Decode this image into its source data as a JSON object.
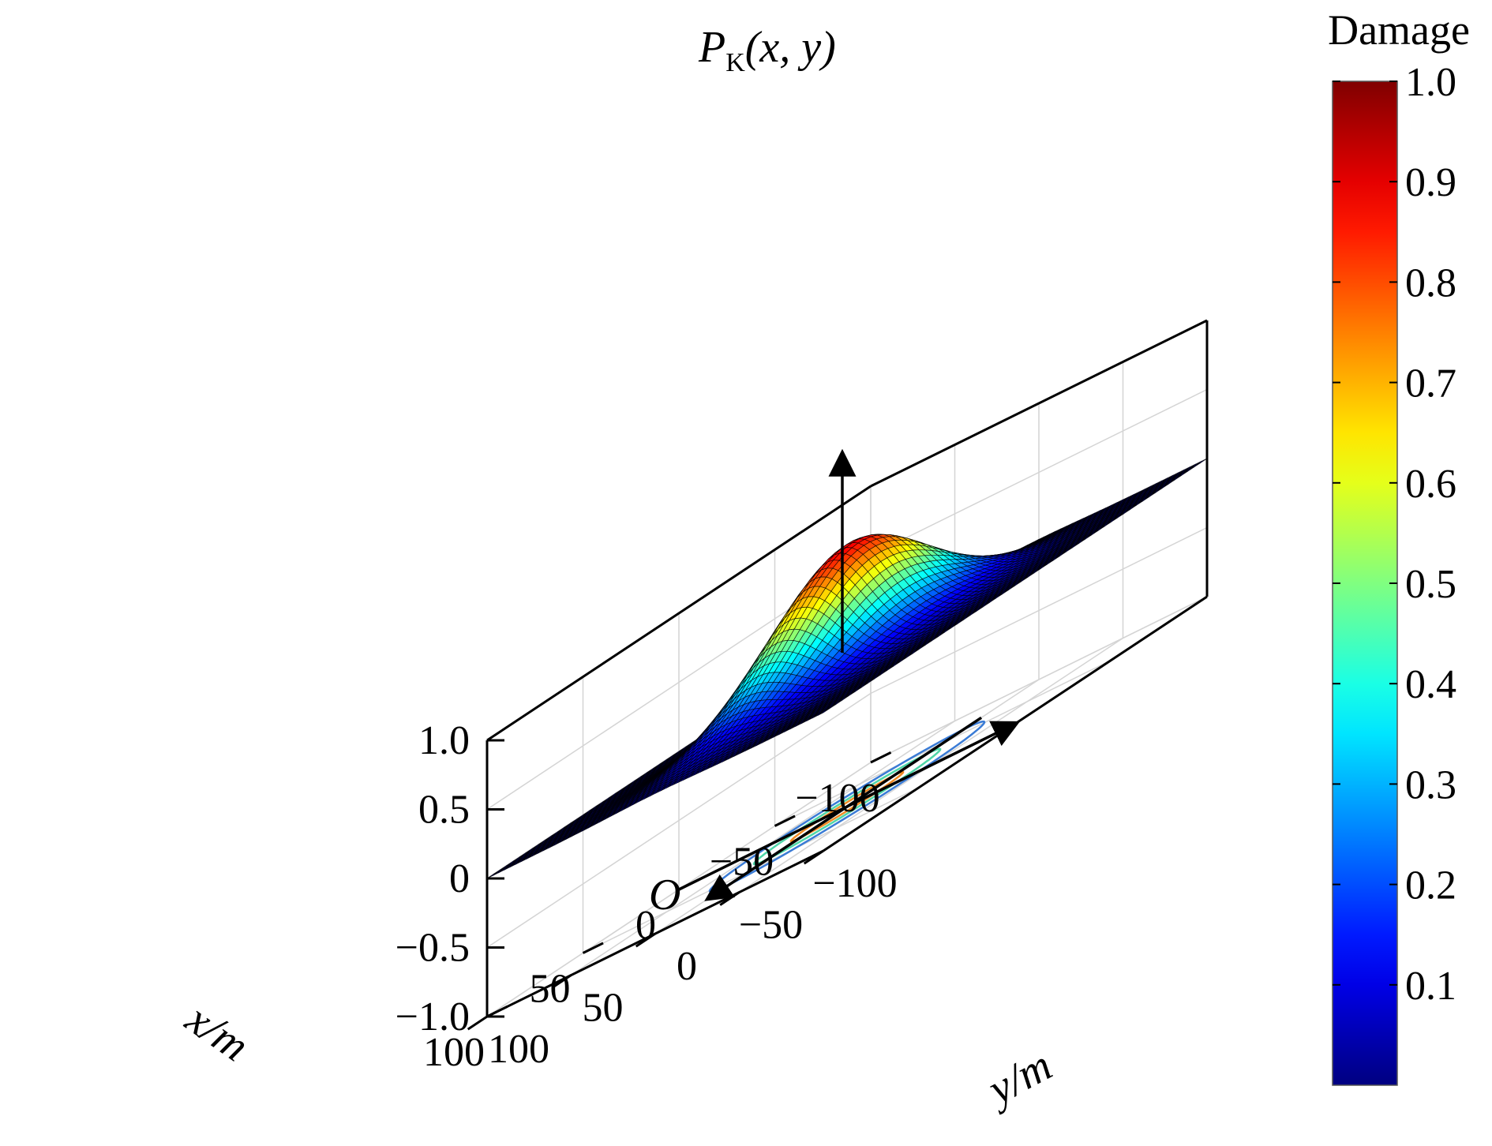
{
  "chart_data": {
    "type": "surface3d",
    "title": "",
    "z_axis_label": {
      "main": "P",
      "subscript": "K",
      "args": "(x, y)"
    },
    "x_axis": {
      "label": "x/m",
      "range": [
        -100,
        100
      ],
      "ticks": [
        -100,
        -50,
        0,
        50,
        100
      ],
      "tick_labels": [
        "−100",
        "−50",
        "0",
        "50",
        "100"
      ]
    },
    "y_axis": {
      "label": "y/m",
      "range": [
        -100,
        100
      ],
      "ticks": [
        -100,
        -50,
        0,
        50,
        100
      ],
      "tick_labels": [
        "−100",
        "−50",
        "0",
        "50",
        "100"
      ]
    },
    "z_axis": {
      "range": [
        -1,
        1
      ],
      "ticks": [
        -1,
        -0.5,
        0,
        0.5,
        1
      ],
      "tick_labels": [
        "−1.0",
        "−0.5",
        "0",
        "0.5",
        "1.0"
      ]
    },
    "origin_label": "O",
    "surface": {
      "function": "gaussian",
      "peak": 0.9,
      "center": [
        0,
        0
      ],
      "sigma_x": 35,
      "sigma_y": 25,
      "grid_resolution": 60,
      "colormap": "jet",
      "mesh_color": "#000000"
    },
    "contours": [
      {
        "level": 0.2,
        "color": "#3a7bd5"
      },
      {
        "level": 0.45,
        "color": "#4fd6a8"
      },
      {
        "level": 0.7,
        "color": "#f08a24"
      },
      {
        "level": 0.9,
        "color": "#c8102e"
      }
    ],
    "colorbar": {
      "title": "Damage",
      "range": [
        0,
        1
      ],
      "ticks": [
        0.1,
        0.2,
        0.3,
        0.4,
        0.5,
        0.6,
        0.7,
        0.8,
        0.9,
        1.0
      ],
      "tick_labels": [
        "0.1",
        "0.2",
        "0.3",
        "0.4",
        "0.5",
        "0.6",
        "0.7",
        "0.8",
        "0.9",
        "1.0"
      ]
    },
    "grid": true
  }
}
